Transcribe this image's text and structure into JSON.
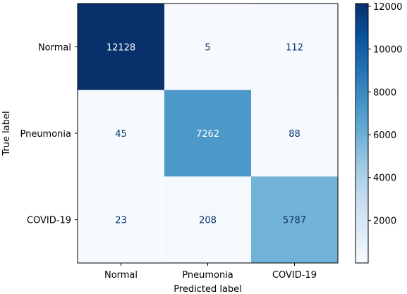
{
  "chart_data": {
    "type": "heatmap",
    "title": "",
    "xlabel": "Predicted label",
    "ylabel": "True label",
    "x_categories": [
      "Normal",
      "Pneumonia",
      "COVID-19"
    ],
    "y_categories": [
      "Normal",
      "Pneumonia",
      "COVID-19"
    ],
    "values": [
      [
        12128,
        5,
        112
      ],
      [
        45,
        7262,
        88
      ],
      [
        23,
        208,
        5787
      ]
    ],
    "colormap": "Blues",
    "color_range": [
      5,
      12128
    ],
    "colorbar": {
      "ticks": [
        2000,
        4000,
        6000,
        8000,
        10000,
        12000
      ],
      "labels": [
        "2000",
        "4000",
        "6000",
        "8000",
        "10000",
        "12000"
      ]
    },
    "text_colors": {
      "dark_cell": "#ffffff",
      "light_cell": "#08306b"
    }
  }
}
